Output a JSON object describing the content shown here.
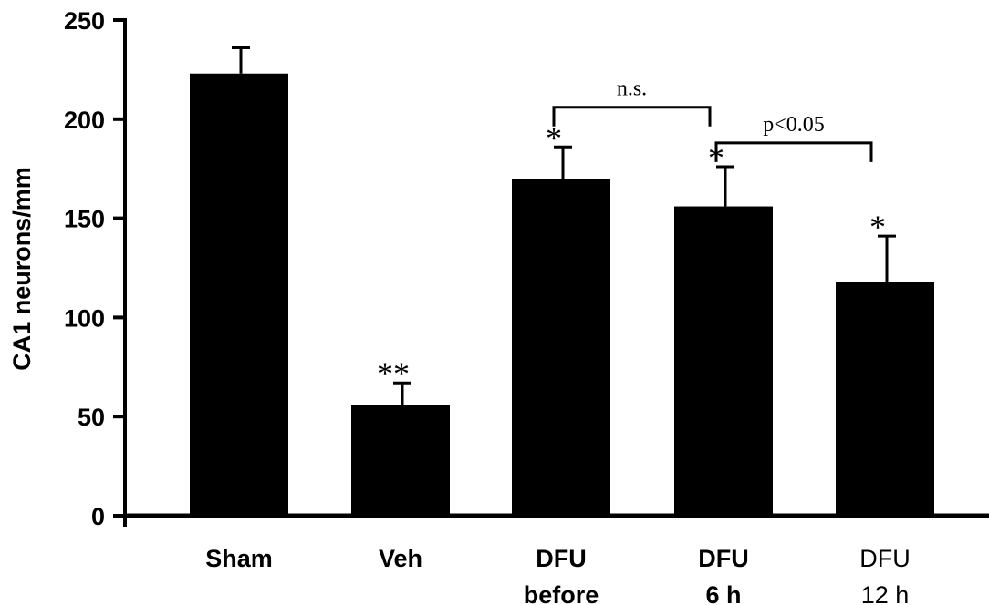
{
  "chart_data": {
    "type": "bar",
    "title": "",
    "xlabel": "",
    "ylabel": "CA1 neurons/mm",
    "ylim": [
      0,
      250
    ],
    "yticks": [
      "0",
      "50",
      "100",
      "150",
      "200",
      "250"
    ],
    "grid": false,
    "legend": "none",
    "bar_color": "#000000",
    "categories": [
      {
        "lines": [
          "Sham"
        ],
        "bold": true
      },
      {
        "lines": [
          "Veh"
        ],
        "bold": true
      },
      {
        "lines": [
          "DFU",
          "before"
        ],
        "bold": true
      },
      {
        "lines": [
          "DFU",
          "6 h"
        ],
        "bold": true
      },
      {
        "lines": [
          "DFU",
          "12 h"
        ],
        "bold": false
      }
    ],
    "values": [
      223,
      56,
      170,
      156,
      118
    ],
    "errors": [
      13,
      11,
      16,
      20,
      23
    ],
    "significance_marks": [
      "",
      "**",
      "*",
      "*",
      "*"
    ],
    "comparisons": [
      {
        "from": 2,
        "to": 3,
        "label": "n.s.",
        "y": 206
      },
      {
        "from": 3,
        "to": 4,
        "label": "p<0.05",
        "y": 188
      }
    ]
  }
}
